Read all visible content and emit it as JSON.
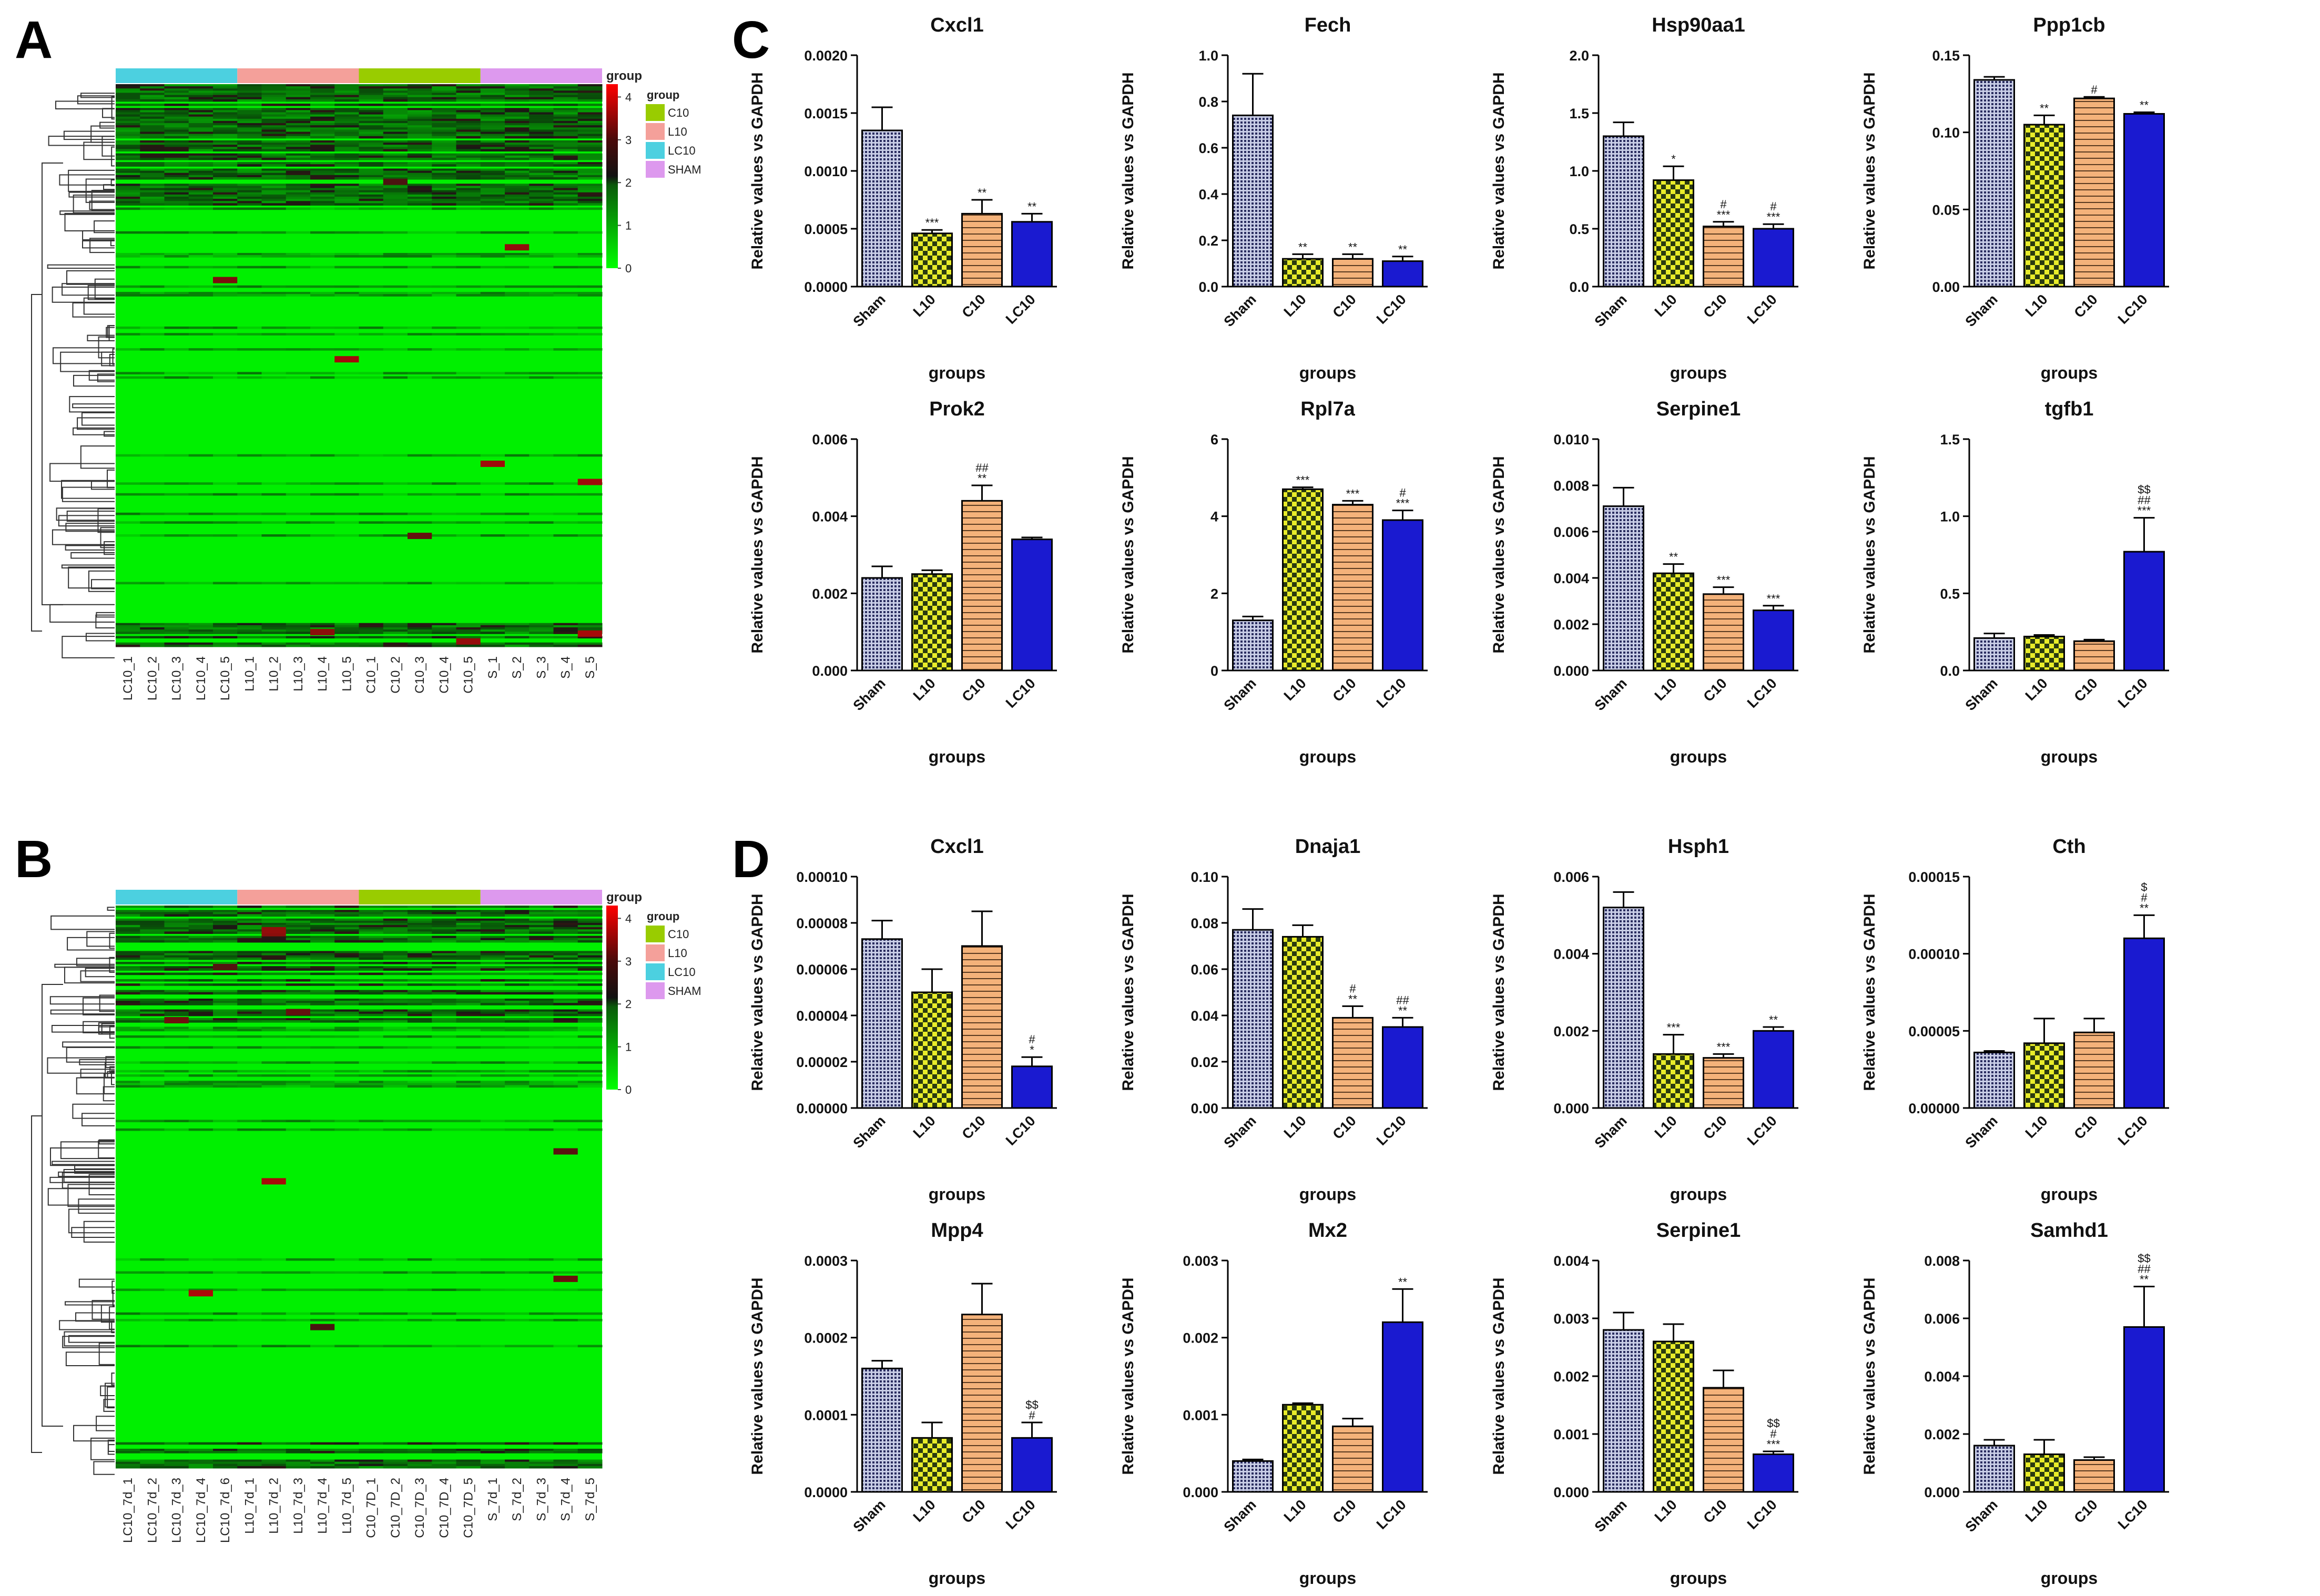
{
  "figure": {
    "panel_labels": [
      "A",
      "B",
      "C",
      "D"
    ],
    "colors": {
      "heatmap_low": "#00ff00",
      "heatmap_mid": "#111111",
      "heatmap_high": "#ff0000",
      "group_C10": "#99cc00",
      "group_L10": "#f4a09a",
      "group_LC10": "#4cd0e0",
      "group_SHAM": "#dd99ee",
      "bar_sham": "#2a2d60",
      "bar_l10": "#e8ec2a",
      "bar_c10": "#f4b27a",
      "bar_lc10": "#1a1ad0"
    }
  },
  "chart_data": [
    {
      "panel": "A",
      "type": "heatmap",
      "columns": [
        "LC10_1",
        "LC10_2",
        "LC10_3",
        "LC10_4",
        "LC10_5",
        "L10_1",
        "L10_2",
        "L10_3",
        "L10_4",
        "L10_5",
        "C10_1",
        "C10_2",
        "C10_3",
        "C10_4",
        "C10_5",
        "S_1",
        "S_2",
        "S_3",
        "S_4",
        "S_5"
      ],
      "groups": [
        "LC10",
        "L10",
        "C10",
        "SHAM"
      ],
      "legend_title": "group",
      "legend_groups": [
        "C10",
        "L10",
        "LC10",
        "SHAM"
      ],
      "colorbar_ticks": [
        "4",
        "3",
        "2",
        "1",
        "0"
      ],
      "colorbar_range": [
        0,
        4.3
      ]
    },
    {
      "panel": "B",
      "type": "heatmap",
      "columns": [
        "LC10_7d_1",
        "LC10_7d_2",
        "LC10_7d_3",
        "LC10_7d_4",
        "LC10_7d_6",
        "L10_7d_1",
        "L10_7d_2",
        "L10_7d_3",
        "L10_7d_4",
        "L10_7d_5",
        "C10_7D_1",
        "C10_7D_2",
        "C10_7D_3",
        "C10_7D_4",
        "C10_7D_5",
        "S_7d_1",
        "S_7d_2",
        "S_7d_3",
        "S_7d_4",
        "S_7d_5"
      ],
      "groups": [
        "LC10",
        "L10",
        "C10",
        "SHAM"
      ],
      "legend_title": "group",
      "legend_groups": [
        "C10",
        "L10",
        "LC10",
        "SHAM"
      ],
      "colorbar_ticks": [
        "4",
        "3",
        "2",
        "1",
        "0"
      ],
      "colorbar_range": [
        0,
        4.3
      ]
    },
    {
      "panel": "C",
      "type": "bar",
      "title": "Cxcl1",
      "categories": [
        "Sham",
        "L10",
        "C10",
        "LC10"
      ],
      "values": [
        0.00135,
        0.00046,
        0.00063,
        0.00056
      ],
      "errors": [
        0.0002,
        3e-05,
        0.00012,
        7e-05
      ],
      "ylim": [
        0,
        0.002
      ],
      "yticks": [
        "0.0000",
        "0.0005",
        "0.0010",
        "0.0015",
        "0.0020"
      ],
      "annotations": [
        "",
        "***",
        "**",
        "**"
      ],
      "xlabel": "groups",
      "ylabel": "Relative values vs GAPDH"
    },
    {
      "panel": "C",
      "type": "bar",
      "title": "Fech",
      "categories": [
        "Sham",
        "L10",
        "C10",
        "LC10"
      ],
      "values": [
        0.74,
        0.12,
        0.12,
        0.11
      ],
      "errors": [
        0.18,
        0.02,
        0.02,
        0.02
      ],
      "ylim": [
        0,
        1.0
      ],
      "yticks": [
        "0.0",
        "0.2",
        "0.4",
        "0.6",
        "0.8",
        "1.0"
      ],
      "annotations": [
        "",
        "**",
        "**",
        "**"
      ],
      "xlabel": "groups",
      "ylabel": "Relative values vs GAPDH"
    },
    {
      "panel": "C",
      "type": "bar",
      "title": "Hsp90aa1",
      "categories": [
        "Sham",
        "L10",
        "C10",
        "LC10"
      ],
      "values": [
        1.3,
        0.92,
        0.52,
        0.5
      ],
      "errors": [
        0.12,
        0.12,
        0.04,
        0.04
      ],
      "ylim": [
        0,
        2.0
      ],
      "yticks": [
        "0.0",
        "0.5",
        "1.0",
        "1.5",
        "2.0"
      ],
      "annotations": [
        "",
        "*",
        "#\n***",
        "#\n***"
      ],
      "xlabel": "groups",
      "ylabel": "Relative values vs GAPDH"
    },
    {
      "panel": "C",
      "type": "bar",
      "title": "Ppp1cb",
      "categories": [
        "Sham",
        "L10",
        "C10",
        "LC10"
      ],
      "values": [
        0.134,
        0.105,
        0.122,
        0.112
      ],
      "errors": [
        0.002,
        0.006,
        0.001,
        0.001
      ],
      "ylim": [
        0,
        0.15
      ],
      "yticks": [
        "0.00",
        "0.05",
        "0.10",
        "0.15"
      ],
      "annotations": [
        "",
        "**",
        "#",
        "**"
      ],
      "xlabel": "groups",
      "ylabel": "Relative values vs GAPDH"
    },
    {
      "panel": "C",
      "type": "bar",
      "title": "Prok2",
      "categories": [
        "Sham",
        "L10",
        "C10",
        "LC10"
      ],
      "values": [
        0.0024,
        0.0025,
        0.0044,
        0.0034
      ],
      "errors": [
        0.0003,
        0.0001,
        0.0004,
        5e-05
      ],
      "ylim": [
        0,
        0.006
      ],
      "yticks": [
        "0.000",
        "0.002",
        "0.004",
        "0.006"
      ],
      "annotations": [
        "",
        "",
        "##\n**",
        ""
      ],
      "xlabel": "groups",
      "ylabel": "Relative values vs GAPDH"
    },
    {
      "panel": "C",
      "type": "bar",
      "title": "Rpl7a",
      "categories": [
        "Sham",
        "L10",
        "C10",
        "LC10"
      ],
      "values": [
        1.3,
        4.7,
        4.3,
        3.9
      ],
      "errors": [
        0.1,
        0.05,
        0.1,
        0.25
      ],
      "ylim": [
        0,
        6
      ],
      "yticks": [
        "0",
        "2",
        "4",
        "6"
      ],
      "annotations": [
        "",
        "***",
        "***",
        "#\n***"
      ],
      "xlabel": "groups",
      "ylabel": "Relative values vs GAPDH"
    },
    {
      "panel": "C",
      "type": "bar",
      "title": "Serpine1",
      "categories": [
        "Sham",
        "L10",
        "C10",
        "LC10"
      ],
      "values": [
        0.0071,
        0.0042,
        0.0033,
        0.0026
      ],
      "errors": [
        0.0008,
        0.0004,
        0.0003,
        0.0002
      ],
      "ylim": [
        0,
        0.01
      ],
      "yticks": [
        "0.000",
        "0.002",
        "0.004",
        "0.006",
        "0.008",
        "0.010"
      ],
      "annotations": [
        "",
        "**",
        "***",
        "***"
      ],
      "xlabel": "groups",
      "ylabel": "Relative values vs GAPDH"
    },
    {
      "panel": "C",
      "type": "bar",
      "title": "tgfb1",
      "categories": [
        "Sham",
        "L10",
        "C10",
        "LC10"
      ],
      "values": [
        0.21,
        0.22,
        0.19,
        0.77
      ],
      "errors": [
        0.03,
        0.01,
        0.01,
        0.22
      ],
      "ylim": [
        0,
        1.5
      ],
      "yticks": [
        "0.0",
        "0.5",
        "1.0",
        "1.5"
      ],
      "annotations": [
        "",
        "",
        "",
        "$$\n##\n***"
      ],
      "xlabel": "groups",
      "ylabel": "Relative values vs GAPDH"
    },
    {
      "panel": "D",
      "type": "bar",
      "title": "Cxcl1",
      "categories": [
        "Sham",
        "L10",
        "C10",
        "LC10"
      ],
      "values": [
        7.3e-05,
        5e-05,
        7e-05,
        1.8e-05
      ],
      "errors": [
        8e-06,
        1e-05,
        1.5e-05,
        4e-06
      ],
      "ylim": [
        0,
        0.0001
      ],
      "yticks": [
        "0.00000",
        "0.00002",
        "0.00004",
        "0.00006",
        "0.00008",
        "0.00010"
      ],
      "annotations": [
        "",
        "",
        "",
        "#\n*"
      ],
      "xlabel": "groups",
      "ylabel": "Relative values vs GAPDH"
    },
    {
      "panel": "D",
      "type": "bar",
      "title": "Dnaja1",
      "categories": [
        "Sham",
        "L10",
        "C10",
        "LC10"
      ],
      "values": [
        0.077,
        0.074,
        0.039,
        0.035
      ],
      "errors": [
        0.009,
        0.005,
        0.005,
        0.004
      ],
      "ylim": [
        0,
        0.1
      ],
      "yticks": [
        "0.00",
        "0.02",
        "0.04",
        "0.06",
        "0.08",
        "0.10"
      ],
      "annotations": [
        "",
        "",
        "#\n**",
        "##\n**"
      ],
      "xlabel": "groups",
      "ylabel": "Relative values vs GAPDH"
    },
    {
      "panel": "D",
      "type": "bar",
      "title": "Hsph1",
      "categories": [
        "Sham",
        "L10",
        "C10",
        "LC10"
      ],
      "values": [
        0.0052,
        0.0014,
        0.0013,
        0.002
      ],
      "errors": [
        0.0004,
        0.0005,
        0.0001,
        0.0001
      ],
      "ylim": [
        0,
        0.006
      ],
      "yticks": [
        "0.000",
        "0.002",
        "0.004",
        "0.006"
      ],
      "annotations": [
        "",
        "***",
        "***",
        "**"
      ],
      "xlabel": "groups",
      "ylabel": "Relative values vs GAPDH"
    },
    {
      "panel": "D",
      "type": "bar",
      "title": "Cth",
      "categories": [
        "Sham",
        "L10",
        "C10",
        "LC10"
      ],
      "values": [
        3.6e-05,
        4.2e-05,
        4.9e-05,
        0.00011
      ],
      "errors": [
        1e-06,
        1.6e-05,
        9e-06,
        1.5e-05
      ],
      "ylim": [
        0,
        0.00015
      ],
      "yticks": [
        "0.00000",
        "0.00005",
        "0.00010",
        "0.00015"
      ],
      "annotations": [
        "",
        "",
        "",
        "$\n#\n**"
      ],
      "xlabel": "groups",
      "ylabel": "Relative values vs GAPDH"
    },
    {
      "panel": "D",
      "type": "bar",
      "title": "Mpp4",
      "categories": [
        "Sham",
        "L10",
        "C10",
        "LC10"
      ],
      "values": [
        0.00016,
        7e-05,
        0.00023,
        7e-05
      ],
      "errors": [
        1e-05,
        2e-05,
        4e-05,
        2e-05
      ],
      "ylim": [
        0,
        0.0003
      ],
      "yticks": [
        "0.0000",
        "0.0001",
        "0.0002",
        "0.0003"
      ],
      "annotations": [
        "",
        "",
        "",
        "$$\n#"
      ],
      "xlabel": "groups",
      "ylabel": "Relative values vs GAPDH"
    },
    {
      "panel": "D",
      "type": "bar",
      "title": "Mx2",
      "categories": [
        "Sham",
        "L10",
        "C10",
        "LC10"
      ],
      "values": [
        0.0004,
        0.00113,
        0.00085,
        0.0022
      ],
      "errors": [
        2e-05,
        2e-05,
        0.0001,
        0.00043
      ],
      "ylim": [
        0,
        0.003
      ],
      "yticks": [
        "0.000",
        "0.001",
        "0.002",
        "0.003"
      ],
      "annotations": [
        "",
        "",
        "",
        "**"
      ],
      "xlabel": "groups",
      "ylabel": "Relative values vs GAPDH"
    },
    {
      "panel": "D",
      "type": "bar",
      "title": "Serpine1",
      "categories": [
        "Sham",
        "L10",
        "C10",
        "LC10"
      ],
      "values": [
        0.0028,
        0.0026,
        0.0018,
        0.00065
      ],
      "errors": [
        0.0003,
        0.0003,
        0.0003,
        5e-05
      ],
      "ylim": [
        0,
        0.004
      ],
      "yticks": [
        "0.000",
        "0.001",
        "0.002",
        "0.003",
        "0.004"
      ],
      "annotations": [
        "",
        "",
        "",
        "$$\n#\n***"
      ],
      "xlabel": "groups",
      "ylabel": "Relative values vs GAPDH"
    },
    {
      "panel": "D",
      "type": "bar",
      "title": "Samhd1",
      "categories": [
        "Sham",
        "L10",
        "C10",
        "LC10"
      ],
      "values": [
        0.0016,
        0.0013,
        0.0011,
        0.0057
      ],
      "errors": [
        0.0002,
        0.0005,
        0.0001,
        0.0014
      ],
      "ylim": [
        0,
        0.008
      ],
      "yticks": [
        "0.000",
        "0.002",
        "0.004",
        "0.006",
        "0.008"
      ],
      "annotations": [
        "",
        "",
        "",
        "$$\n##\n**"
      ],
      "xlabel": "groups",
      "ylabel": "Relative values vs GAPDH"
    }
  ]
}
